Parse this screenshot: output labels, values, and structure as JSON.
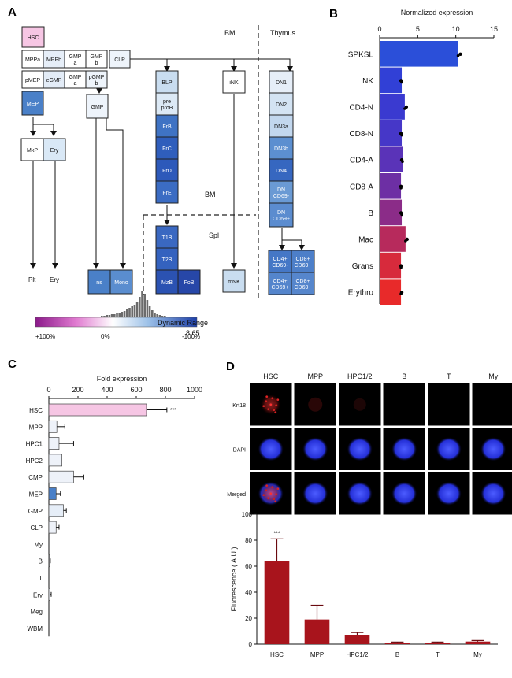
{
  "panels": {
    "a": "A",
    "b": "B",
    "c": "C",
    "d": "D"
  },
  "panel_a": {
    "region_bm": "BM",
    "region_thymus": "Thymus",
    "region_bm2": "BM",
    "region_spl": "Spl",
    "nodes": [
      {
        "label": "HSC",
        "color": "#f6c6e4"
      },
      {
        "label": "MPPa",
        "color": "#ffffff"
      },
      {
        "label": "MPPb",
        "color": "#e6eef8"
      },
      {
        "label": "GMP a",
        "color": "#ffffff"
      },
      {
        "label": "GMP b",
        "color": "#ffffff"
      },
      {
        "label": "CLP",
        "color": "#eef4fb"
      },
      {
        "label": "pMEP",
        "color": "#ffffff"
      },
      {
        "label": "eGMP",
        "color": "#e3ecf7"
      },
      {
        "label": "GMP a",
        "color": "#ffffff"
      },
      {
        "label": "pGMP b",
        "color": "#eef4fb"
      },
      {
        "label": "MEP",
        "color": "#4a80c8"
      },
      {
        "label": "GMP",
        "color": "#eef4fb"
      },
      {
        "label": "MkP",
        "color": "#ffffff"
      },
      {
        "label": "Ery",
        "color": "#d9e8f6"
      },
      {
        "label": "BLP",
        "color": "#c9ddf0"
      },
      {
        "label": "pre proB",
        "color": "#dce9f5"
      },
      {
        "label": "FrB",
        "color": "#3f73c4"
      },
      {
        "label": "FrC",
        "color": "#2f5ebc"
      },
      {
        "label": "FrD",
        "color": "#2d59ba"
      },
      {
        "label": "FrE",
        "color": "#3b6cc3"
      },
      {
        "label": "T1B",
        "color": "#3a68c1"
      },
      {
        "label": "T2B",
        "color": "#3462bf"
      },
      {
        "label": "MzB",
        "color": "#2b52b2"
      },
      {
        "label": "FoB",
        "color": "#2747a8"
      },
      {
        "label": "iNK",
        "color": "#ffffff"
      },
      {
        "label": "mNK",
        "color": "#c9ddf0"
      },
      {
        "label": "DN1",
        "color": "#e6eef8"
      },
      {
        "label": "DN2",
        "color": "#d3e3f3"
      },
      {
        "label": "DN3a",
        "color": "#c2d7ee"
      },
      {
        "label": "DN3b",
        "color": "#5c8fd0"
      },
      {
        "label": "DN4",
        "color": "#3667c0"
      },
      {
        "label": "DN CD69-",
        "color": "#6a9ad4"
      },
      {
        "label": "DN CD69+",
        "color": "#5b8ccf"
      },
      {
        "label": "CD4+ CD69-",
        "color": "#4577c6"
      },
      {
        "label": "CD8+ CD69+",
        "color": "#4d7fc9"
      },
      {
        "label": "CD4+ CD69+",
        "color": "#5485cc"
      },
      {
        "label": "CD8+ CD69+",
        "color": "#5686cc"
      },
      {
        "label": "ns",
        "color": "#4a80c8"
      },
      {
        "label": "Mono",
        "color": "#5a8dcf"
      }
    ],
    "terminal_labels": {
      "plt": "Plt",
      "ery": "Ery"
    },
    "legend": {
      "title": "Dynamic Range",
      "value": "8.65",
      "tick_left": "+100%",
      "tick_mid": "0%",
      "tick_right": "-100%"
    }
  },
  "chart_data": [
    {
      "panel": "B",
      "type": "bar",
      "title": "Normalized expression",
      "categories": [
        "SPKSL",
        "NK",
        "CD4-N",
        "CD8-N",
        "CD4-A",
        "CD8-A",
        "B",
        "Mac",
        "Grans",
        "Erythro"
      ],
      "values": [
        10.3,
        2.9,
        3.3,
        2.9,
        3.0,
        2.8,
        2.9,
        3.4,
        2.8,
        2.8
      ],
      "points": [
        10.6,
        2.8,
        3.5,
        2.8,
        2.9,
        2.8,
        2.8,
        3.6,
        2.8,
        2.9
      ],
      "colors": [
        "#2b4fd9",
        "#3140d6",
        "#3a3ad0",
        "#4637c8",
        "#5a33b8",
        "#6d2fa4",
        "#8b2c88",
        "#b72a5c",
        "#d72a3c",
        "#e82a2a"
      ],
      "xlim": [
        0,
        15
      ],
      "xticks": [
        "0",
        "5",
        "10",
        "15"
      ]
    },
    {
      "panel": "C",
      "type": "bar",
      "title": "Fold expression",
      "categories": [
        "HSC",
        "MPP",
        "HPC1",
        "HPC2",
        "CMP",
        "MEP",
        "GMP",
        "CLP",
        "My",
        "B",
        "T",
        "Ery",
        "Meg",
        "WBM"
      ],
      "values": [
        670,
        55,
        70,
        90,
        170,
        50,
        100,
        50,
        0,
        5,
        0,
        8,
        0,
        0
      ],
      "errors": [
        140,
        55,
        100,
        0,
        70,
        30,
        20,
        20,
        0,
        5,
        0,
        8,
        0,
        0
      ],
      "colors": [
        "#f6c6e4",
        "#eef2f9",
        "#eef2f9",
        "#eef2f9",
        "#eef2f9",
        "#4a80c8",
        "#e6eef8",
        "#eef2f9",
        "#eef2f9",
        "#eef2f9",
        "#eef2f9",
        "#eef2f9",
        "#eef2f9",
        "#eef2f9"
      ],
      "significance": "***",
      "xlim": [
        0,
        1000
      ],
      "xticks": [
        "0",
        "200",
        "400",
        "600",
        "800",
        "1000"
      ]
    },
    {
      "panel": "D",
      "type": "bar",
      "ylabel": "Fluorescence ( A.U.)",
      "categories": [
        "HSC",
        "MPP",
        "HPC1/2",
        "B",
        "T",
        "My"
      ],
      "values": [
        64,
        19,
        7,
        1,
        1,
        2
      ],
      "errors": [
        17,
        11,
        2,
        0.6,
        0.6,
        0.8
      ],
      "bar_color": "#a8141c",
      "significance": "***",
      "ylim": [
        0,
        100
      ],
      "yticks": [
        "0",
        "20",
        "40",
        "60",
        "80",
        "100"
      ]
    }
  ],
  "panel_d_images": {
    "columns": [
      "HSC",
      "MPP",
      "HPC1/2",
      "B",
      "T",
      "My"
    ],
    "rows": [
      "Krt18",
      "DAPI",
      "Merged"
    ]
  }
}
